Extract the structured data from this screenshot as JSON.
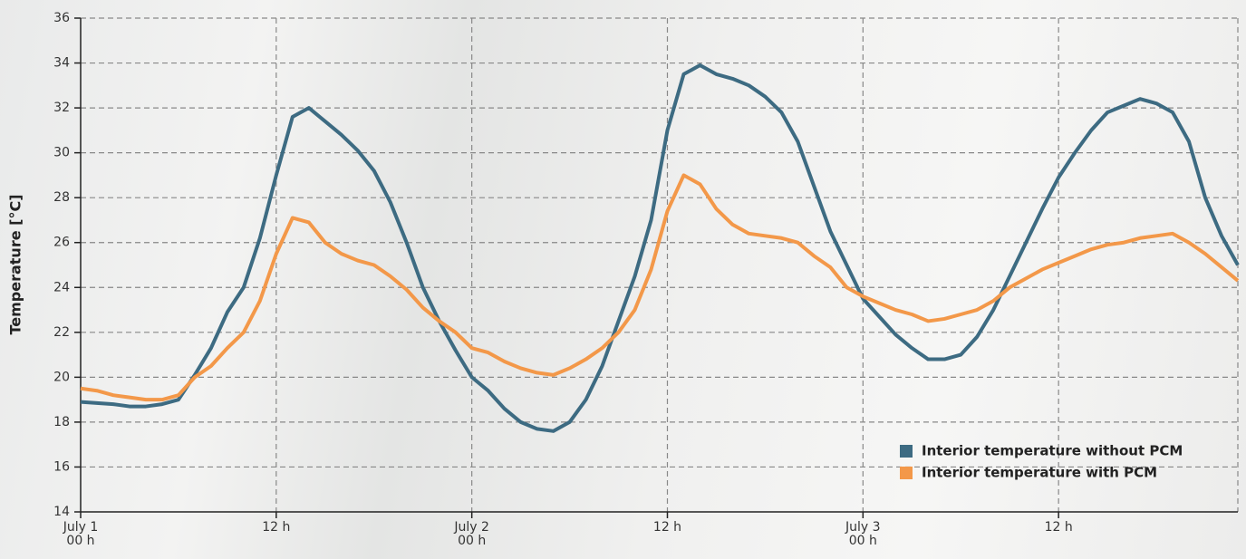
{
  "chart_data": {
    "type": "line",
    "ylabel": "Temperature [°C]",
    "x": [
      0,
      1,
      2,
      3,
      4,
      5,
      6,
      7,
      8,
      9,
      10,
      11,
      12,
      13,
      14,
      15,
      16,
      17,
      18,
      19,
      20,
      21,
      22,
      23,
      24,
      25,
      26,
      27,
      28,
      29,
      30,
      31,
      32,
      33,
      34,
      35,
      36,
      37,
      38,
      39,
      40,
      41,
      42,
      43,
      44,
      45,
      46,
      47,
      48,
      49,
      50,
      51,
      52,
      53,
      54,
      55,
      56,
      57,
      58,
      59,
      60,
      61,
      62,
      63,
      64,
      65,
      66,
      67,
      68,
      69,
      70,
      71
    ],
    "series": [
      {
        "name": "Interior temperature without PCM",
        "color": "#3d6b82",
        "values": [
          18.9,
          18.85,
          18.8,
          18.7,
          18.7,
          18.8,
          19.0,
          20.1,
          21.3,
          22.9,
          24.0,
          26.2,
          29.0,
          31.6,
          32.0,
          31.4,
          30.8,
          30.1,
          29.2,
          27.8,
          26.0,
          24.0,
          22.5,
          21.2,
          20.0,
          19.4,
          18.6,
          18.0,
          17.7,
          17.6,
          18.0,
          19.0,
          20.5,
          22.5,
          24.5,
          27.0,
          31.0,
          33.5,
          33.9,
          33.5,
          33.3,
          33.0,
          32.5,
          31.8,
          30.5,
          28.5,
          26.5,
          25.0,
          23.5,
          22.7,
          21.9,
          21.3,
          20.8,
          20.8,
          21.0,
          21.8,
          23.0,
          24.5,
          26.0,
          27.5,
          28.9,
          30.0,
          31.0,
          31.8,
          32.1,
          32.4,
          32.2,
          31.8,
          30.5,
          28.0,
          26.3,
          25.0
        ]
      },
      {
        "name": "Interior temperature with PCM",
        "color": "#f39849",
        "values": [
          19.5,
          19.4,
          19.2,
          19.1,
          19.0,
          19.0,
          19.2,
          20.0,
          20.5,
          21.3,
          22.0,
          23.4,
          25.5,
          27.1,
          26.9,
          26.0,
          25.5,
          25.2,
          25.0,
          24.5,
          23.9,
          23.1,
          22.5,
          22.0,
          21.3,
          21.1,
          20.7,
          20.4,
          20.2,
          20.1,
          20.4,
          20.8,
          21.3,
          22.0,
          23.0,
          24.8,
          27.4,
          29.0,
          28.6,
          27.5,
          26.8,
          26.4,
          26.3,
          26.2,
          26.0,
          25.4,
          24.9,
          24.0,
          23.6,
          23.3,
          23.0,
          22.8,
          22.5,
          22.6,
          22.8,
          23.0,
          23.4,
          24.0,
          24.4,
          24.8,
          25.1,
          25.4,
          25.7,
          25.9,
          26.0,
          26.2,
          26.3,
          26.4,
          26.0,
          25.5,
          24.9,
          24.3
        ]
      }
    ],
    "xlim": [
      0,
      71
    ],
    "xticks": [
      {
        "value": 0,
        "label": "July 1\n00 h"
      },
      {
        "value": 12,
        "label": "12 h"
      },
      {
        "value": 24,
        "label": "July 2\n00 h"
      },
      {
        "value": 36,
        "label": "12 h"
      },
      {
        "value": 48,
        "label": "July 3\n00 h"
      },
      {
        "value": 60,
        "label": "12 h"
      }
    ],
    "ylim": [
      14,
      36
    ],
    "yticks": [
      14,
      16,
      18,
      20,
      22,
      24,
      26,
      28,
      30,
      32,
      34,
      36
    ],
    "grid": true,
    "legend": "lower right"
  }
}
